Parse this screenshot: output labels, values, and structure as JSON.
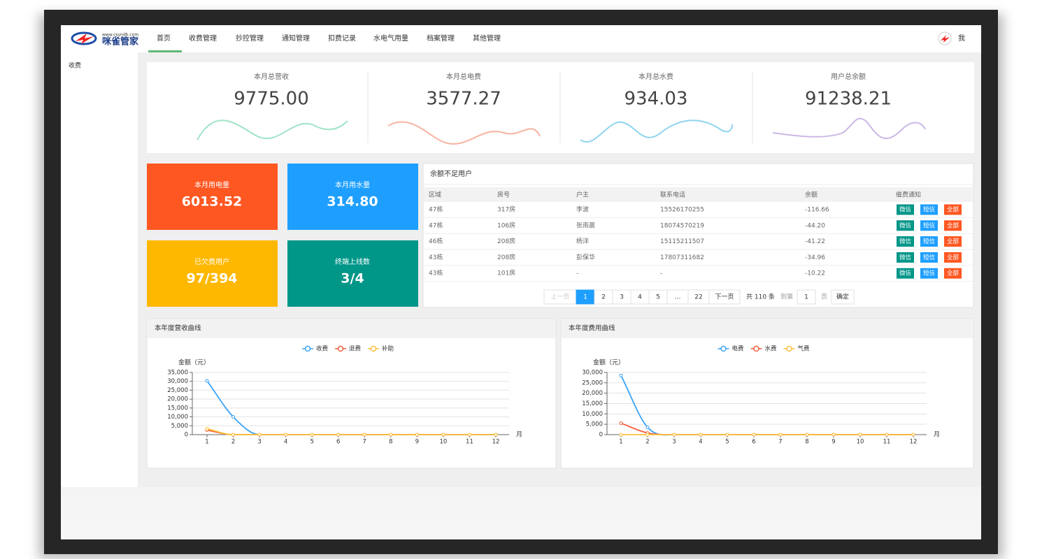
{
  "header": {
    "logo_url": "www.csyndb.com",
    "logo_name": "咪雀管家",
    "nav": [
      "首页",
      "收费管理",
      "抄控管理",
      "通知管理",
      "扣费记录",
      "水电气用量",
      "档案管理",
      "其他管理"
    ],
    "user": "我"
  },
  "sidebar": [
    "收费"
  ],
  "stats": [
    {
      "label": "本月总营收",
      "value": "9775.00"
    },
    {
      "label": "本月总电费",
      "value": "3577.27"
    },
    {
      "label": "本月总水费",
      "value": "934.03"
    },
    {
      "label": "用户总余额",
      "value": "91238.21"
    }
  ],
  "tiles": [
    {
      "label": "本月用电量",
      "value": "6013.52",
      "color": "#ff5722"
    },
    {
      "label": "本月用水量",
      "value": "314.80",
      "color": "#1e9fff"
    },
    {
      "label": "已欠费用户",
      "value": "97/394",
      "color": "#ffb800"
    },
    {
      "label": "终端上线数",
      "value": "3/4",
      "color": "#009688"
    }
  ],
  "table": {
    "title": "余额不足用户",
    "columns": [
      "区域",
      "房号",
      "户主",
      "联系电话",
      "余额",
      "催费通知"
    ],
    "rows": [
      [
        "47栋",
        "317房",
        "李波",
        "15526170255",
        "-116.66"
      ],
      [
        "47栋",
        "106房",
        "张雨晨",
        "18074570219",
        "-44.20"
      ],
      [
        "46栋",
        "208房",
        "杨洋",
        "15115211507",
        "-41.22"
      ],
      [
        "43栋",
        "208房",
        "彭保华",
        "17807311682",
        "-34.96"
      ],
      [
        "43栋",
        "101房",
        "-",
        "-",
        "-10.22"
      ]
    ],
    "buttons": [
      "微信",
      "短信",
      "全部"
    ]
  },
  "pagination": {
    "prev": "上一页",
    "pages": [
      "1",
      "2",
      "3",
      "4",
      "5",
      "…",
      "22"
    ],
    "next": "下一页",
    "total": "共 110 条",
    "goto": "到第",
    "input": "1",
    "page_unit": "页",
    "confirm": "确定"
  },
  "chart_data": [
    {
      "type": "line",
      "title": "本年度营收曲线",
      "ylabel": "金额（元）",
      "xlabel": "月",
      "categories": [
        "1",
        "2",
        "3",
        "4",
        "5",
        "6",
        "7",
        "8",
        "9",
        "10",
        "11",
        "12"
      ],
      "series": [
        {
          "name": "收费",
          "color": "#3ba4f5",
          "values": [
            30300,
            10000,
            0,
            0,
            0,
            0,
            0,
            0,
            0,
            0,
            0,
            0
          ]
        },
        {
          "name": "退费",
          "color": "#f2603c",
          "values": [
            2500,
            0,
            0,
            0,
            0,
            0,
            0,
            0,
            0,
            0,
            0,
            0
          ]
        },
        {
          "name": "补助",
          "color": "#fcc13a",
          "values": [
            3300,
            0,
            0,
            0,
            0,
            0,
            0,
            0,
            0,
            0,
            0,
            0
          ]
        }
      ],
      "ylim": [
        0,
        35000
      ],
      "yticks": [
        0,
        {
          "value": 5000,
          "label": "5,000"
        },
        {
          "value": 10000,
          "label": "10,000"
        },
        {
          "value": 15000,
          "label": "15,000"
        },
        {
          "value": 20000,
          "label": "20,000"
        },
        {
          "value": 25000,
          "label": "25,000"
        },
        {
          "value": 30000,
          "label": "30,000"
        },
        {
          "value": 35000,
          "label": "35,000"
        }
      ],
      "grid": true,
      "legend": "top"
    },
    {
      "type": "line",
      "title": "本年度费用曲线",
      "ylabel": "金额（元）",
      "xlabel": "月",
      "categories": [
        "1",
        "2",
        "3",
        "4",
        "5",
        "6",
        "7",
        "8",
        "9",
        "10",
        "11",
        "12"
      ],
      "series": [
        {
          "name": "电费",
          "color": "#3ba4f5",
          "values": [
            28500,
            3500,
            0,
            0,
            0,
            0,
            0,
            0,
            0,
            0,
            0,
            0
          ]
        },
        {
          "name": "水费",
          "color": "#f2603c",
          "values": [
            5500,
            800,
            0,
            0,
            0,
            0,
            0,
            0,
            0,
            0,
            0,
            0
          ]
        },
        {
          "name": "气费",
          "color": "#fcc13a",
          "values": [
            0,
            0,
            0,
            0,
            0,
            0,
            0,
            0,
            0,
            0,
            0,
            0
          ]
        }
      ],
      "ylim": [
        0,
        30000
      ],
      "yticks": [
        0,
        {
          "value": 5000,
          "label": "5,000"
        },
        {
          "value": 10000,
          "label": "10,000"
        },
        {
          "value": 15000,
          "label": "15,000"
        },
        {
          "value": 20000,
          "label": "20,000"
        },
        {
          "value": 25000,
          "label": "25,000"
        },
        {
          "value": 30000,
          "label": "30,000"
        }
      ],
      "grid": true,
      "legend": "top"
    }
  ]
}
